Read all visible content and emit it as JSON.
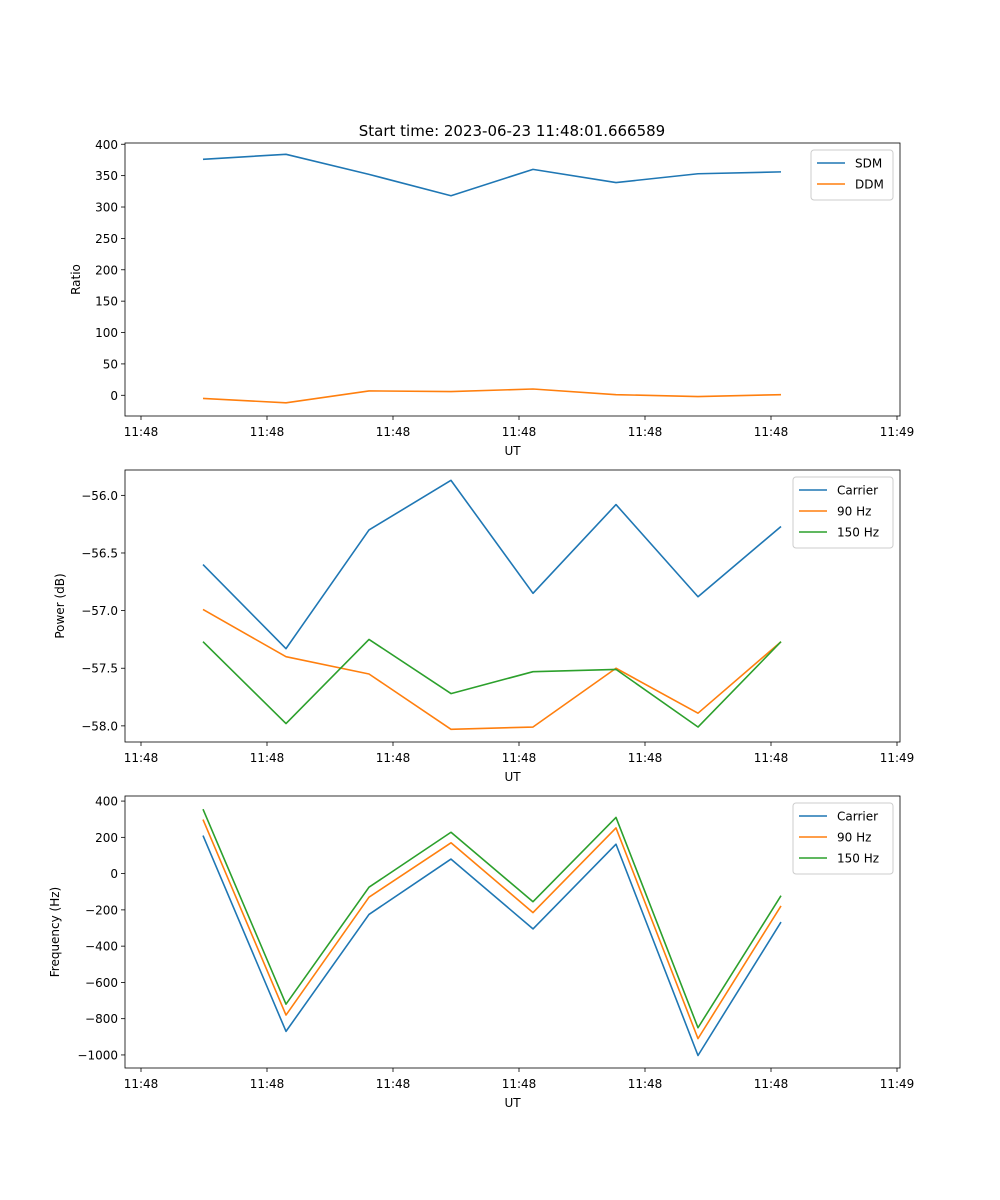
{
  "figure_title": "Start time: 2023-06-23 11:48:01.666589",
  "colors": {
    "blue": "#1f77b4",
    "orange": "#ff7f0e",
    "green": "#2ca02c"
  },
  "chart_data": [
    {
      "type": "line",
      "xlabel": "UT",
      "ylabel": "Ratio",
      "x_tick_labels": [
        "11:48",
        "11:48",
        "11:48",
        "11:48",
        "11:48",
        "11:48",
        "11:49"
      ],
      "y_ticks": [
        0,
        50,
        100,
        150,
        200,
        250,
        300,
        350,
        400
      ],
      "ylim": [
        -33,
        402
      ],
      "legend_position": "upper right",
      "series": [
        {
          "name": "SDM",
          "color": "#1f77b4",
          "values": [
            376,
            384,
            352,
            318,
            360,
            339,
            353,
            356
          ]
        },
        {
          "name": "DDM",
          "color": "#ff7f0e",
          "values": [
            -5,
            -12,
            7,
            6,
            10,
            1,
            -2,
            1
          ]
        }
      ]
    },
    {
      "type": "line",
      "xlabel": "UT",
      "ylabel": "Power (dB)",
      "x_tick_labels": [
        "11:48",
        "11:48",
        "11:48",
        "11:48",
        "11:48",
        "11:48",
        "11:49"
      ],
      "y_ticks": [
        -56.0,
        -56.5,
        -57.0,
        -57.5,
        -58.0
      ],
      "ylim": [
        -58.14,
        -55.78
      ],
      "legend_position": "upper right",
      "series": [
        {
          "name": "Carrier",
          "color": "#1f77b4",
          "values": [
            -56.6,
            -57.33,
            -56.3,
            -55.87,
            -56.85,
            -56.08,
            -56.88,
            -56.27
          ]
        },
        {
          "name": "90 Hz",
          "color": "#ff7f0e",
          "values": [
            -56.99,
            -57.4,
            -57.55,
            -58.03,
            -58.01,
            -57.5,
            -57.89,
            -57.27
          ]
        },
        {
          "name": "150 Hz",
          "color": "#2ca02c",
          "values": [
            -57.27,
            -57.98,
            -57.25,
            -57.72,
            -57.53,
            -57.51,
            -58.01,
            -57.27
          ]
        }
      ]
    },
    {
      "type": "line",
      "xlabel": "UT",
      "ylabel": "Frequency (Hz)",
      "x_tick_labels": [
        "11:48",
        "11:48",
        "11:48",
        "11:48",
        "11:48",
        "11:48",
        "11:49"
      ],
      "y_ticks": [
        400,
        200,
        0,
        -200,
        -400,
        -600,
        -800,
        -1000
      ],
      "ylim": [
        -1072,
        428
      ],
      "legend_position": "upper right",
      "series": [
        {
          "name": "Carrier",
          "color": "#1f77b4",
          "values": [
            210,
            -870,
            -225,
            80,
            -305,
            162,
            -1003,
            -267
          ]
        },
        {
          "name": "90 Hz",
          "color": "#ff7f0e",
          "values": [
            298,
            -780,
            -130,
            170,
            -215,
            252,
            -910,
            -178
          ]
        },
        {
          "name": "150 Hz",
          "color": "#2ca02c",
          "values": [
            355,
            -720,
            -75,
            228,
            -155,
            310,
            -850,
            -122
          ]
        }
      ]
    }
  ]
}
